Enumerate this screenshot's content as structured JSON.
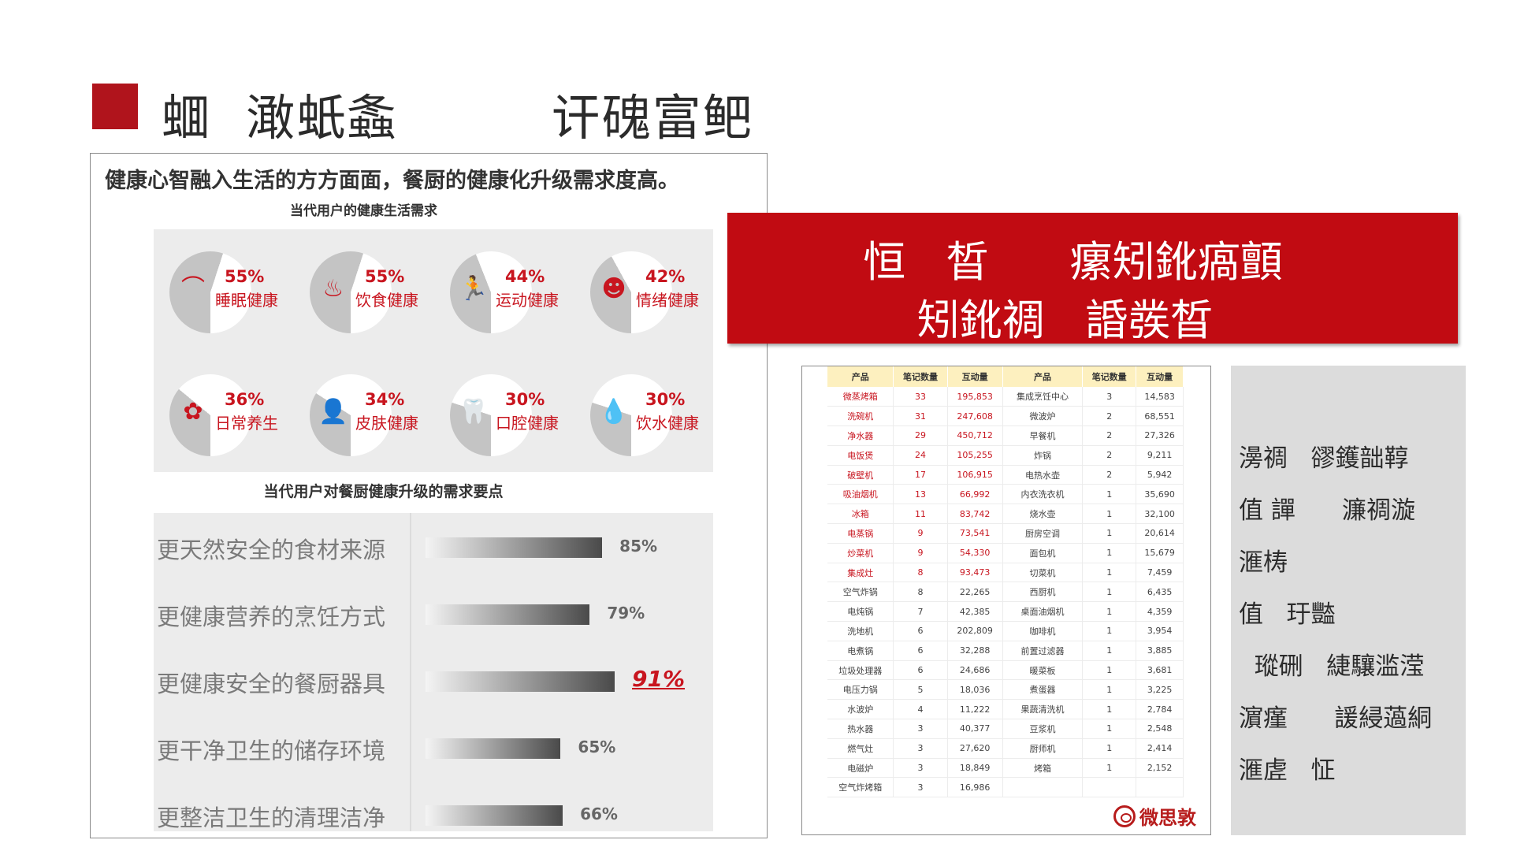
{
  "slide": {
    "title": "蜖  澉蚔螽         讦磈富鲃"
  },
  "infographic": {
    "headline": "健康心智融入生活的方方面面，餐厨的健康化升级需求度高。",
    "pies_title": "当代用户的健康生活需求",
    "pies": [
      {
        "percent": "55%",
        "label": "睡眠健康",
        "value": 55,
        "icon": "sleep-icon",
        "glyph": "⌒"
      },
      {
        "percent": "55%",
        "label": "饮食健康",
        "value": 55,
        "icon": "food-icon",
        "glyph": "♨"
      },
      {
        "percent": "44%",
        "label": "运动健康",
        "value": 44,
        "icon": "running-icon",
        "glyph": "🏃"
      },
      {
        "percent": "42%",
        "label": "情绪健康",
        "value": 42,
        "icon": "smiley-icon",
        "glyph": "☻"
      },
      {
        "percent": "36%",
        "label": "日常养生",
        "value": 36,
        "icon": "lotus-icon",
        "glyph": "✿"
      },
      {
        "percent": "34%",
        "label": "皮肤健康",
        "value": 34,
        "icon": "person-icon",
        "glyph": "👤"
      },
      {
        "percent": "30%",
        "label": "口腔健康",
        "value": 30,
        "icon": "tooth-icon",
        "glyph": "🦷"
      },
      {
        "percent": "30%",
        "label": "饮水健康",
        "value": 30,
        "icon": "water-drop-icon",
        "glyph": "💧"
      }
    ],
    "bars_title": "当代用户对餐厨健康升级的需求要点",
    "bars": [
      {
        "label": "更天然安全的食材来源",
        "value": 85,
        "display": "85%",
        "highlight": false
      },
      {
        "label": "更健康营养的烹饪方式",
        "value": 79,
        "display": "79%",
        "highlight": false
      },
      {
        "label": "更健康安全的餐厨器具",
        "value": 91,
        "display": "91%",
        "highlight": true
      },
      {
        "label": "更干净卫生的储存环境",
        "value": 65,
        "display": "65%",
        "highlight": false
      },
      {
        "label": "更整洁卫生的清理洁净",
        "value": 66,
        "display": "66%",
        "highlight": false
      }
    ]
  },
  "banner": {
    "line1": "恒   晳      瘰矧鈋瘑顫",
    "line2": "矧鈋禂   諙彂晳"
  },
  "table": {
    "headers": [
      "产品",
      "笔记数量",
      "互动量",
      "产品",
      "笔记数量",
      "互动量"
    ],
    "rows": [
      [
        "微蒸烤箱",
        "33",
        "195,853",
        "集成烹饪中心",
        "3",
        "14,583"
      ],
      [
        "洗碗机",
        "31",
        "247,608",
        "微波炉",
        "2",
        "68,551"
      ],
      [
        "净水器",
        "29",
        "450,712",
        "早餐机",
        "2",
        "27,326"
      ],
      [
        "电饭煲",
        "24",
        "105,255",
        "炸锅",
        "2",
        "9,211"
      ],
      [
        "破壁机",
        "17",
        "106,915",
        "电热水壶",
        "2",
        "5,942"
      ],
      [
        "吸油烟机",
        "13",
        "66,992",
        "内衣洗衣机",
        "1",
        "35,690"
      ],
      [
        "冰箱",
        "11",
        "83,742",
        "烧水壶",
        "1",
        "32,100"
      ],
      [
        "电蒸锅",
        "9",
        "73,541",
        "厨房空调",
        "1",
        "20,614"
      ],
      [
        "炒菜机",
        "9",
        "54,330",
        "面包机",
        "1",
        "15,679"
      ],
      [
        "集成灶",
        "8",
        "93,473",
        "切菜机",
        "1",
        "7,459"
      ],
      [
        "空气炸锅",
        "8",
        "22,265",
        "西厨机",
        "1",
        "6,435"
      ],
      [
        "电炖锅",
        "7",
        "42,385",
        "桌面油烟机",
        "1",
        "4,359"
      ],
      [
        "洗地机",
        "6",
        "202,809",
        "咖啡机",
        "1",
        "3,954"
      ],
      [
        "电煮锅",
        "6",
        "32,288",
        "前置过滤器",
        "1",
        "3,885"
      ],
      [
        "垃圾处理器",
        "6",
        "24,686",
        "暖菜板",
        "1",
        "3,681"
      ],
      [
        "电压力锅",
        "5",
        "18,036",
        "煮蛋器",
        "1",
        "3,225"
      ],
      [
        "水波炉",
        "4",
        "11,222",
        "果蔬清洗机",
        "1",
        "2,784"
      ],
      [
        "热水器",
        "3",
        "40,377",
        "豆浆机",
        "1",
        "2,548"
      ],
      [
        "燃气灶",
        "3",
        "27,620",
        "厨师机",
        "1",
        "2,414"
      ],
      [
        "电磁炉",
        "3",
        "18,849",
        "烤箱",
        "1",
        "2,152"
      ],
      [
        "空气炸烤箱",
        "3",
        "16,986",
        "",
        "",
        ""
      ]
    ],
    "red_rows": 10,
    "logo_text": "微思敦"
  },
  "side_text": {
    "lines": [
      "澷禂   豂鑊韷鞟",
      "值 譂      濂禂漩",
      "滙梼",
      "值   玗豓",
      "  瑽硎   緁驤滥滢",
      "濵瘽      諼綅薖絧",
      "滙虗   怔"
    ]
  }
}
